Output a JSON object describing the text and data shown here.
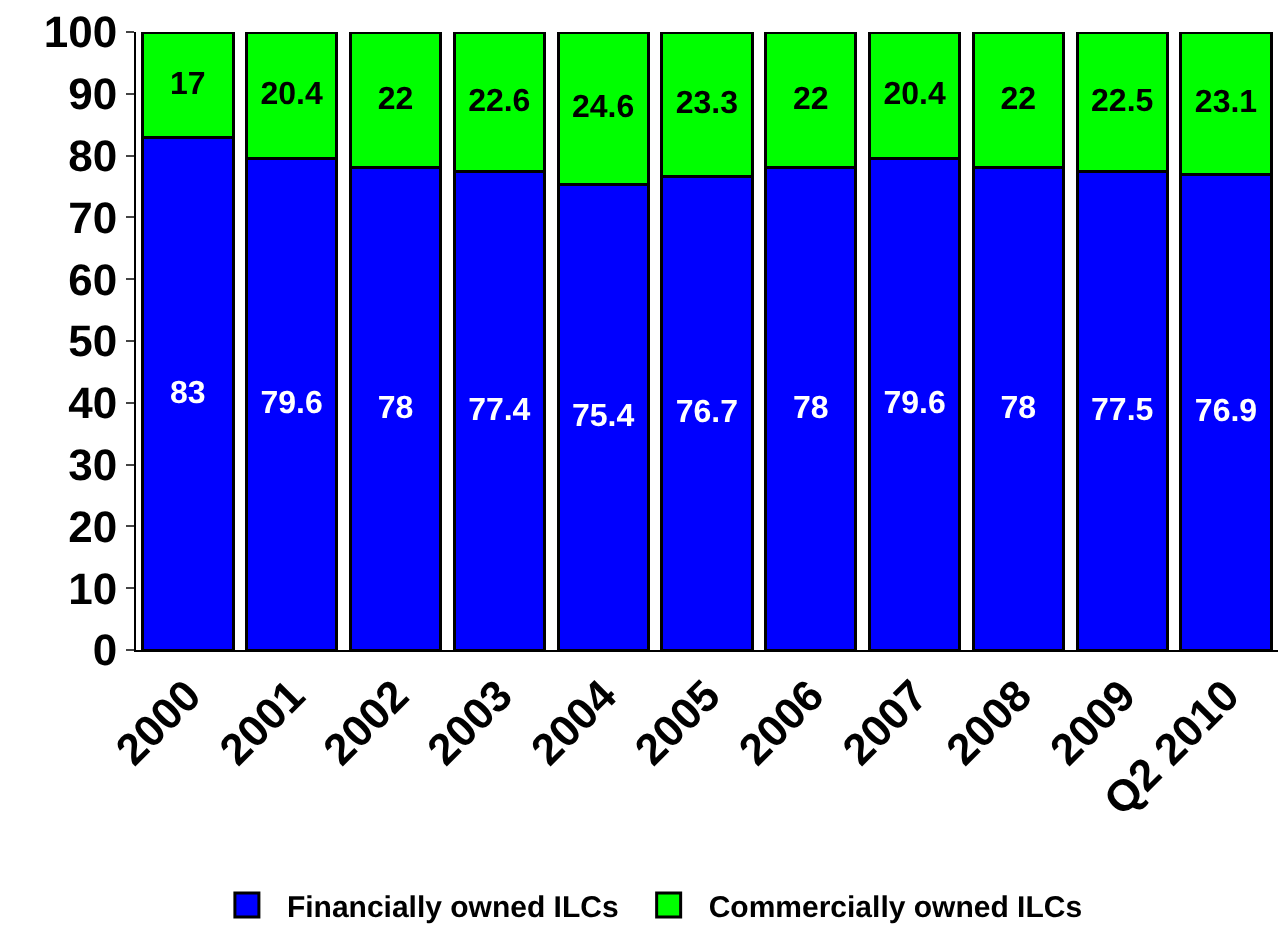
{
  "chart_data": {
    "type": "bar",
    "stacked": true,
    "categories": [
      "2000",
      "2001",
      "2002",
      "2003",
      "2004",
      "2005",
      "2006",
      "2007",
      "2008",
      "2009",
      "Q2 2010"
    ],
    "series": [
      {
        "name": "Financially owned ILCs",
        "color": "#0000ff",
        "values": [
          83,
          79.6,
          78,
          77.4,
          75.4,
          76.7,
          78,
          79.6,
          78,
          77.5,
          76.9
        ]
      },
      {
        "name": "Commercially owned ILCs",
        "color": "#00ff00",
        "values": [
          17,
          20.4,
          22,
          22.6,
          24.6,
          23.3,
          22,
          20.4,
          22,
          22.5,
          23.1
        ]
      }
    ],
    "ylim": [
      0,
      100
    ],
    "yticks": [
      0,
      10,
      20,
      30,
      40,
      50,
      60,
      70,
      80,
      90,
      100
    ],
    "legend": "bottom",
    "data_labels": true
  }
}
